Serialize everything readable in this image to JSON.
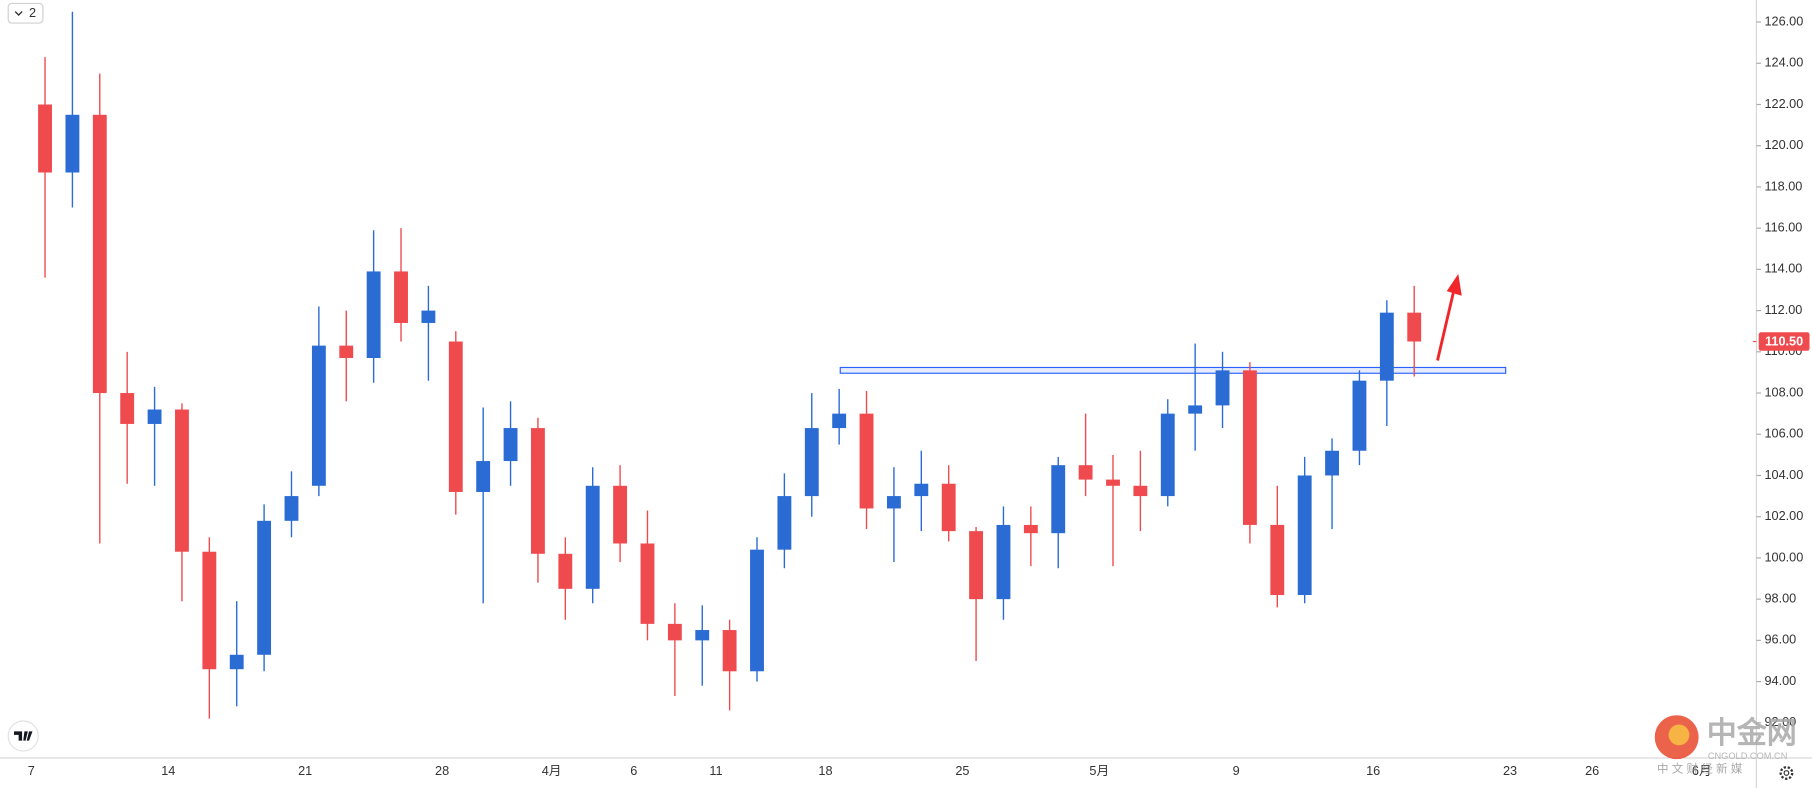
{
  "chart_data": {
    "type": "candlestick",
    "categories": [
      "7",
      null,
      null,
      null,
      null,
      "14",
      null,
      null,
      null,
      null,
      "21",
      null,
      null,
      null,
      null,
      "28",
      null,
      null,
      null,
      "4月",
      null,
      null,
      "6",
      null,
      null,
      "11",
      null,
      null,
      null,
      "18",
      null,
      null,
      null,
      null,
      "25",
      null,
      null,
      null,
      null,
      "5月",
      null,
      null,
      null,
      null,
      "9",
      null,
      null,
      null,
      null,
      "16",
      null,
      null,
      null,
      null,
      "23",
      null,
      null,
      "26",
      null,
      null,
      null,
      "6月",
      null,
      null
    ],
    "open": [
      122,
      118.7,
      121.5,
      108,
      106.5,
      107.2,
      100.3,
      94.6,
      95.3,
      101.8,
      103.5,
      110.3,
      109.7,
      113.9,
      111.4,
      110.5,
      103.2,
      104.7,
      106.3,
      100.2,
      98.5,
      103.5,
      100.7,
      96.8,
      96,
      96.5,
      94.5,
      100.4,
      103,
      106.3,
      107,
      102.4,
      103,
      103.6,
      101.3,
      98,
      101.6,
      101.2,
      104.5,
      103.8,
      103.5,
      103,
      107,
      107.4,
      109.1,
      101.6,
      98.2,
      104,
      105.2,
      108.6,
      111.9,
      null,
      null,
      null,
      null,
      null,
      null,
      null,
      null,
      null,
      null,
      null,
      null,
      null
    ],
    "high": [
      124.3,
      126.5,
      123.5,
      110,
      108.3,
      107.5,
      101,
      97.9,
      102.6,
      104.2,
      112.2,
      112,
      115.9,
      116,
      113.2,
      111,
      107.3,
      107.6,
      106.8,
      101,
      104.4,
      104.5,
      102.3,
      97.8,
      97.7,
      97,
      101,
      104.1,
      108,
      108.2,
      108.1,
      104.4,
      105.2,
      104.5,
      101.5,
      102.5,
      102.5,
      104.9,
      107,
      105,
      105.2,
      107.7,
      110.4,
      110,
      109.5,
      103.5,
      104.9,
      105.8,
      109.1,
      112.5,
      113.2,
      null,
      null,
      null,
      null,
      null,
      null,
      null,
      null,
      null,
      null,
      null,
      null,
      null
    ],
    "low": [
      113.6,
      117,
      100.7,
      103.6,
      103.5,
      97.9,
      92.2,
      92.8,
      94.5,
      101,
      103,
      107.6,
      108.5,
      110.5,
      108.6,
      102.1,
      97.8,
      103.5,
      98.8,
      97,
      97.8,
      99.8,
      96,
      93.3,
      93.8,
      92.6,
      94,
      99.5,
      102,
      105.5,
      101.4,
      99.8,
      101.3,
      100.8,
      95,
      97,
      99.6,
      99.5,
      103,
      99.6,
      101.3,
      102.5,
      105.2,
      106.3,
      100.7,
      97.6,
      97.8,
      101.4,
      104.5,
      106.4,
      108.8,
      null,
      null,
      null,
      null,
      null,
      null,
      null,
      null,
      null,
      null,
      null,
      null,
      null
    ],
    "close": [
      118.7,
      121.5,
      108,
      106.5,
      107.2,
      100.3,
      94.6,
      95.3,
      101.8,
      103,
      110.3,
      109.7,
      113.9,
      111.4,
      112,
      103.2,
      104.7,
      106.3,
      100.2,
      98.5,
      103.5,
      100.7,
      96.8,
      96,
      96.5,
      94.5,
      100.4,
      103,
      106.3,
      107,
      102.4,
      103,
      103.6,
      101.3,
      98,
      101.6,
      101.2,
      104.5,
      103.8,
      103.5,
      103,
      107,
      107.4,
      109.1,
      101.6,
      98.2,
      104,
      105.2,
      108.6,
      111.9,
      110.5,
      null,
      null,
      null,
      null,
      null,
      null,
      null,
      null,
      null,
      null,
      null,
      null,
      null
    ],
    "up_color": "#2a6bd4",
    "down_color": "#ef4b4f",
    "ylim": [
      90.35,
      127.07
    ],
    "yticks": [
      {
        "value": 92,
        "label": "92.00"
      },
      {
        "value": 94,
        "label": "94.00"
      },
      {
        "value": 96,
        "label": "96.00"
      },
      {
        "value": 98,
        "label": "98.00"
      },
      {
        "value": 100,
        "label": "100.00"
      },
      {
        "value": 102,
        "label": "102.00"
      },
      {
        "value": 104,
        "label": "104.00"
      },
      {
        "value": 106,
        "label": "106.00"
      },
      {
        "value": 108,
        "label": "108.00"
      },
      {
        "value": 110,
        "label": "110.00"
      },
      {
        "value": 112,
        "label": "112.00"
      },
      {
        "value": 114,
        "label": "114.00"
      },
      {
        "value": 116,
        "label": "116.00"
      },
      {
        "value": 118,
        "label": "118.00"
      },
      {
        "value": 120,
        "label": "120.00"
      },
      {
        "value": 122,
        "label": "122.00"
      },
      {
        "value": 124,
        "label": "124.00"
      },
      {
        "value": 126,
        "label": "126.00"
      }
    ],
    "grid": false,
    "last_price": {
      "value": 110.5,
      "label": "110.50",
      "color": "#ef4b4f"
    },
    "zone": {
      "start": 29.54,
      "end": 53.84,
      "top": 109.24,
      "bottom": 108.96,
      "color": "#2962ff"
    }
  },
  "toolbar": {
    "label": "2"
  },
  "watermark": {
    "brand": "中金网",
    "domain": "CNGOLD.COM.CN",
    "tagline": "中 文 财 经 新 媒"
  }
}
